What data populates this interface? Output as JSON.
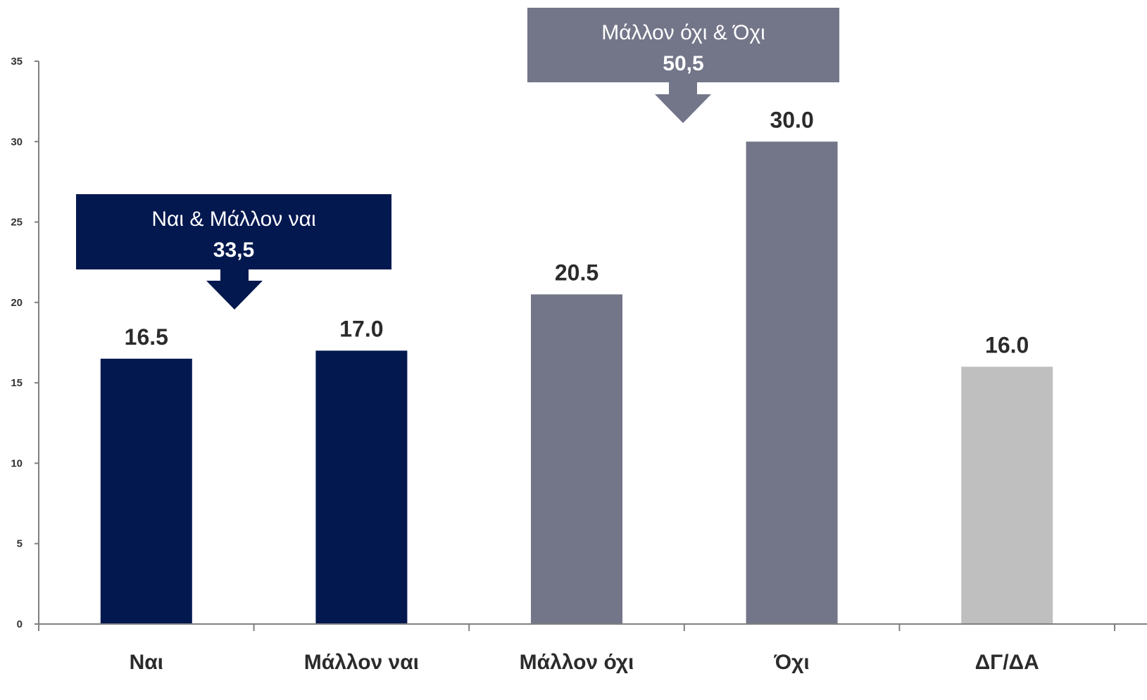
{
  "chart_data": {
    "type": "bar",
    "categories": [
      "Ναι",
      "Μάλλον ναι",
      "Μάλλον όχι",
      "Όχι",
      "ΔΓ/ΔΑ"
    ],
    "values": [
      16.5,
      17.0,
      20.5,
      30.0,
      16.0
    ],
    "value_labels": [
      "16.5",
      "17.0",
      "20.5",
      "30.0",
      "16.0"
    ],
    "bar_colors": [
      "#03184f",
      "#03184f",
      "#737589",
      "#737589",
      "#bfbfbf"
    ],
    "ylim": [
      0,
      35
    ],
    "yticks": [
      0,
      5,
      10,
      15,
      20,
      25,
      30,
      35
    ],
    "grid": false,
    "title": "",
    "xlabel": "",
    "ylabel": "",
    "annotations": [
      {
        "text": "Ναι & Μάλλον ναι",
        "value": "33,5",
        "color": "#03184f",
        "covers": [
          "Ναι",
          "Μάλλον ναι"
        ]
      },
      {
        "text": "Μάλλον όχι & Όχι",
        "value": "50,5",
        "color": "#737589",
        "covers": [
          "Μάλλον όχι",
          "Όχι"
        ]
      }
    ],
    "axis_color": "#808080"
  }
}
